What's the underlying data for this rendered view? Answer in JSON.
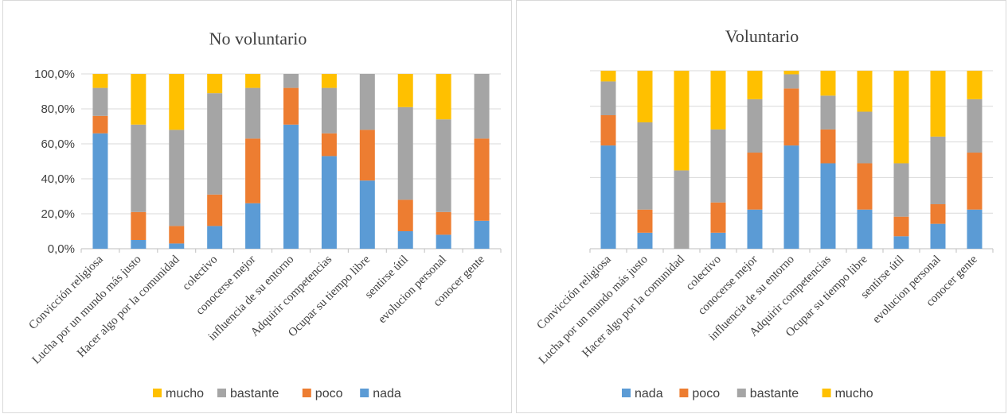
{
  "colors": {
    "nada": "#5b9bd5",
    "poco": "#ed7d31",
    "bastante": "#a5a5a5",
    "mucho": "#ffc000",
    "grid": "#d9d9d9",
    "axis": "#bfbfbf"
  },
  "chart_data": [
    {
      "type": "bar",
      "stacked": true,
      "title": "No voluntario",
      "categories": [
        "Convicción religiosa",
        "Lucha por un mundo más justo",
        "Hacer algo por la comunidad",
        "colectivo",
        "conocerse mejor",
        "influencia de su entorno",
        "Adquirir competencias",
        "Ocupar su tiempo libre",
        "sentirse útil",
        "evolucion personal",
        "conocer gente"
      ],
      "ylim": [
        0,
        100
      ],
      "yticks": [
        "0,0%",
        "20,0%",
        "40,0%",
        "60,0%",
        "80,0%",
        "100,0%"
      ],
      "grid": true,
      "legend": {
        "position": "bottom",
        "order": [
          "mucho",
          "bastante",
          "poco",
          "nada"
        ]
      },
      "series": [
        {
          "name": "nada",
          "values": [
            66,
            5,
            3,
            13,
            26,
            71,
            53,
            39,
            10,
            8,
            16
          ]
        },
        {
          "name": "poco",
          "values": [
            10,
            16,
            10,
            18,
            37,
            21,
            13,
            29,
            18,
            13,
            47
          ]
        },
        {
          "name": "bastante",
          "values": [
            16,
            50,
            55,
            58,
            29,
            8,
            26,
            32,
            53,
            53,
            37
          ]
        },
        {
          "name": "mucho",
          "values": [
            8,
            29,
            32,
            11,
            8,
            0,
            8,
            0,
            19,
            26,
            0
          ]
        }
      ]
    },
    {
      "type": "bar",
      "stacked": true,
      "title": "Voluntario",
      "categories": [
        "Convicción religiosa",
        "Lucha por un mundo más justo",
        "Hacer algo por la comunidad",
        "colectivo",
        "conocerse mejor",
        "influencia de su entorno",
        "Adquirir competencias",
        "Ocupar su tiempo libre",
        "sentirse útil",
        "evolucion personal",
        "conocer gente"
      ],
      "ylim": [
        0,
        100
      ],
      "grid": true,
      "legend": {
        "position": "bottom",
        "order": [
          "nada",
          "poco",
          "bastante",
          "mucho"
        ]
      },
      "series": [
        {
          "name": "nada",
          "values": [
            58,
            9,
            0,
            9,
            22,
            58,
            48,
            22,
            7,
            14,
            22
          ]
        },
        {
          "name": "poco",
          "values": [
            17,
            13,
            0,
            17,
            32,
            32,
            19,
            26,
            11,
            11,
            32
          ]
        },
        {
          "name": "bastante",
          "values": [
            19,
            49,
            44,
            41,
            30,
            8,
            19,
            29,
            30,
            38,
            30
          ]
        },
        {
          "name": "mucho",
          "values": [
            6,
            29,
            56,
            33,
            16,
            2,
            14,
            23,
            52,
            37,
            16
          ]
        }
      ]
    }
  ]
}
